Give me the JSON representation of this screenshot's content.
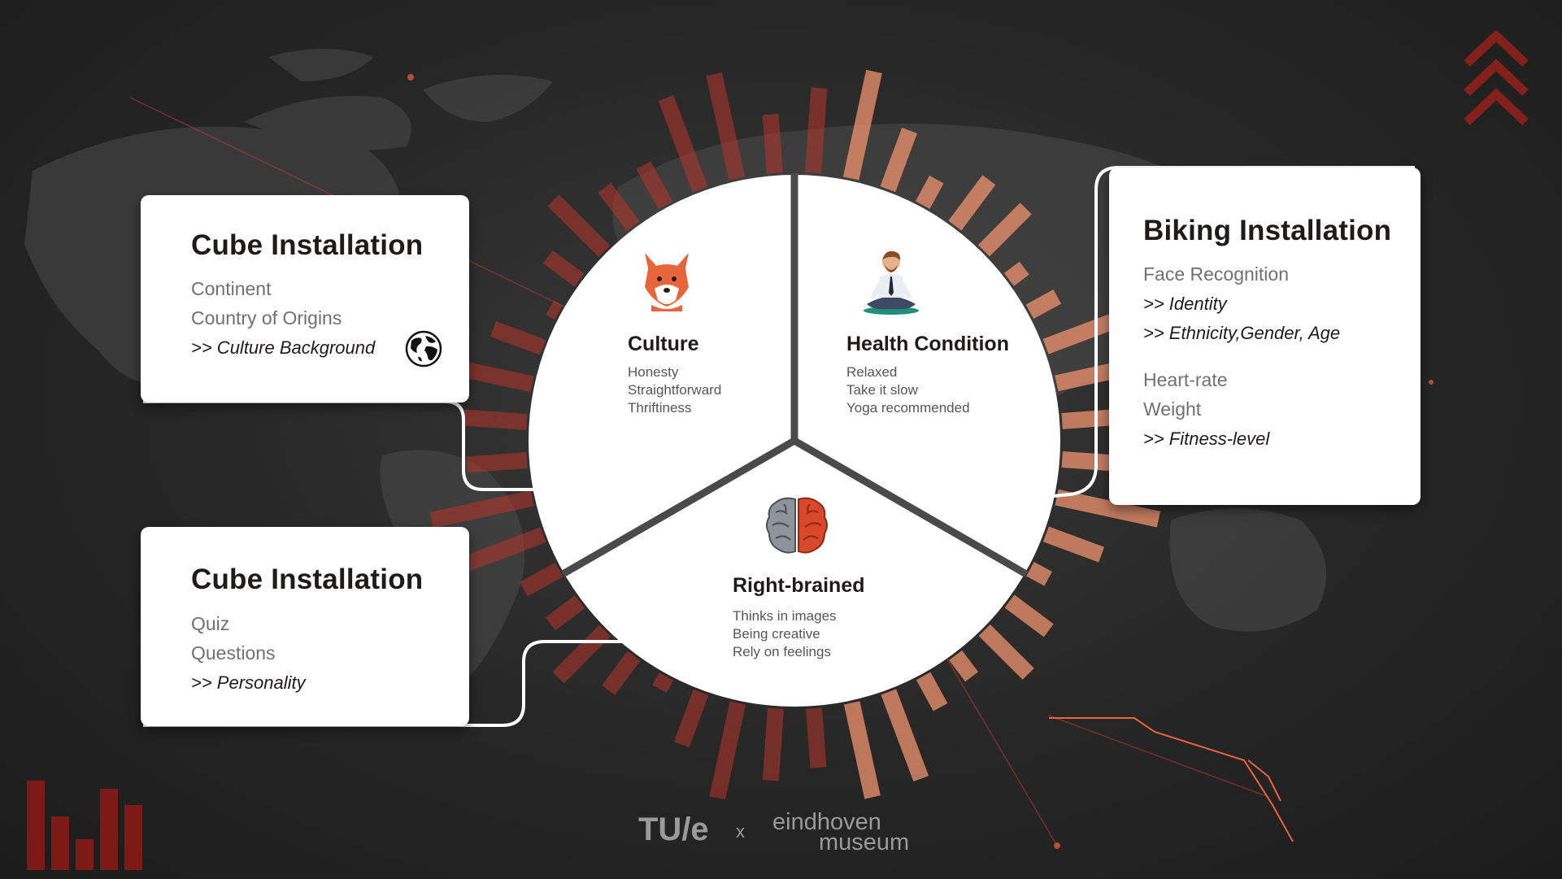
{
  "cards": {
    "cube_top": {
      "title": "Cube Installation",
      "lines": [
        "Continent",
        "Country of Origins",
        ">> Culture Background"
      ]
    },
    "cube_bottom": {
      "title": "Cube Installation",
      "lines": [
        "Quiz",
        "Questions",
        ">> Personality"
      ]
    },
    "biking": {
      "title": "Biking Installation",
      "lines": [
        "Face Recognition",
        ">> Identity",
        ">> Ethnicity,Gender, Age",
        "Heart-rate",
        "Weight",
        ">> Fitness-level"
      ]
    }
  },
  "segments": {
    "culture": {
      "title": "Culture",
      "lines": [
        "Honesty",
        "Straightforward",
        "Thriftiness"
      ]
    },
    "health": {
      "title": "Health Condition",
      "lines": [
        "Relaxed",
        "Take it slow",
        "Yoga recommended"
      ]
    },
    "brain": {
      "title": "Right-brained",
      "lines": [
        "Thinks in images",
        "Being creative",
        "Rely on feelings"
      ]
    }
  },
  "footer": {
    "tue": "TU/e",
    "separator": "x",
    "museum_line1": "eindhoven",
    "museum_line2": "museum"
  },
  "colors": {
    "accent_red": "#c0392b",
    "accent_orange": "#e8643a",
    "card_bg": "#ffffff",
    "text_dark": "#1e1b1b",
    "text_gray": "#707070",
    "divider": "#4a4a4a"
  },
  "icons": [
    "globe-icon",
    "fox-icon",
    "meditating-person-icon",
    "brain-icon",
    "chevron-up-icon",
    "bar-chart-icon"
  ]
}
